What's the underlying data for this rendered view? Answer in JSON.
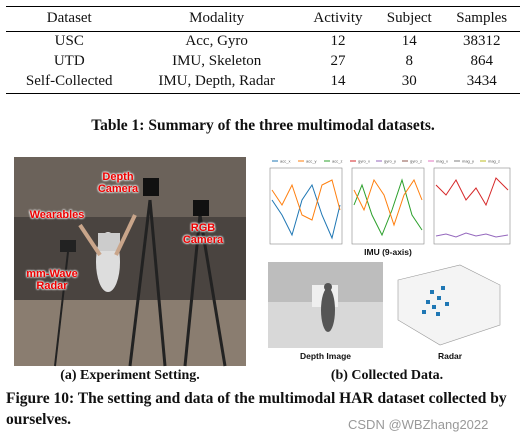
{
  "table": {
    "headers": [
      "Dataset",
      "Modality",
      "Activity",
      "Subject",
      "Samples"
    ],
    "rows": [
      [
        "USC",
        "Acc, Gyro",
        "12",
        "14",
        "38312"
      ],
      [
        "UTD",
        "IMU, Skeleton",
        "27",
        "8",
        "864"
      ],
      [
        "Self-Collected",
        "IMU, Depth, Radar",
        "14",
        "30",
        "3434"
      ]
    ],
    "caption": "Table 1: Summary of the three multimodal datasets."
  },
  "figure": {
    "photo_labels": [
      "Depth Camera",
      "Wearables",
      "RGB Camera",
      "mm-Wave Radar"
    ],
    "imu_legend": [
      "acc_x",
      "acc_y",
      "acc_z",
      "gyro_x",
      "gyro_y",
      "gyro_z",
      "mag_x",
      "mag_y",
      "mag_z"
    ],
    "panel_labels": [
      "IMU (9-axis)",
      "Depth Image",
      "Radar"
    ],
    "subcaptions": [
      "(a) Experiment Setting.",
      "(b) Collected Data."
    ],
    "caption": "Figure 10: The setting and data of the multimodal HAR dataset collected by ourselves."
  },
  "watermark": "CSDN @WBZhang2022"
}
